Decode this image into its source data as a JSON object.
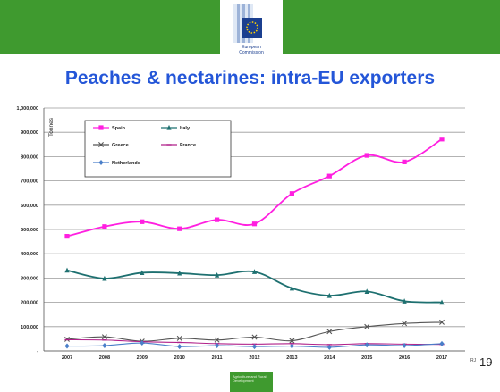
{
  "header": {
    "org_line1": "European",
    "org_line2": "Commission"
  },
  "title": "Peaches & nectarines: intra-EU exporters",
  "page_number": "19",
  "corner_note": "RJ",
  "footer_logo_text": "Agriculture and Rural Development",
  "colors": {
    "header_bar": "#3f9a2f",
    "title": "#2456d8",
    "eu_flag": "#1b3f8f"
  },
  "chart_data": {
    "type": "line",
    "title": "",
    "xlabel": "",
    "ylabel": "Tonnes",
    "x": [
      "2007",
      "2008",
      "2009",
      "2010",
      "2011",
      "2012",
      "2013",
      "2014",
      "2015",
      "2016",
      "2017"
    ],
    "ylim": [
      0,
      1000000
    ],
    "yticks": [
      "-",
      "100,000",
      "200,000",
      "300,000",
      "400,000",
      "500,000",
      "600,000",
      "700,000",
      "800,000",
      "900,000",
      "1,000,000"
    ],
    "grid": true,
    "legend_position": "top-left",
    "series": [
      {
        "name": "Spain",
        "color": "#ff1fe0",
        "marker": "square",
        "values": [
          472000,
          512000,
          532000,
          503000,
          540000,
          523000,
          648000,
          720000,
          805000,
          778000,
          872000
        ]
      },
      {
        "name": "Italy",
        "color": "#1e7070",
        "marker": "triangle",
        "values": [
          332000,
          298000,
          322000,
          320000,
          312000,
          326000,
          258000,
          228000,
          245000,
          205000,
          200000
        ]
      },
      {
        "name": "Greece",
        "color": "#555555",
        "marker": "x",
        "values": [
          48000,
          58000,
          40000,
          52000,
          45000,
          57000,
          42000,
          80000,
          100000,
          113000,
          118000
        ]
      },
      {
        "name": "France",
        "color": "#b0208a",
        "marker": "dash",
        "values": [
          46000,
          45000,
          38000,
          35000,
          30000,
          28000,
          30000,
          26000,
          30000,
          28000,
          27000
        ]
      },
      {
        "name": "Netherlands",
        "color": "#4a7fc9",
        "marker": "diamond",
        "values": [
          20000,
          22000,
          33000,
          18000,
          22000,
          18000,
          20000,
          15000,
          25000,
          22000,
          30000
        ]
      }
    ]
  }
}
